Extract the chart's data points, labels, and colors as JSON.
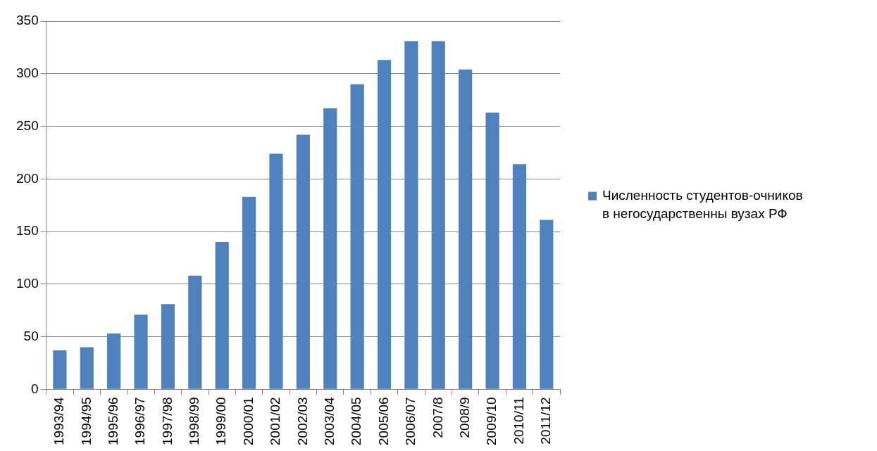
{
  "chart_data": {
    "type": "bar",
    "categories": [
      "1993/94",
      "1994/95",
      "1995/96",
      "1996/97",
      "1997/98",
      "1998/99",
      "1999/00",
      "2000/01",
      "2001/02",
      "2002/03",
      "2003/04",
      "2004/05",
      "2005/06",
      "2006/07",
      "2007/8",
      "2008/9",
      "2009/10",
      "2010/11",
      "2011/12"
    ],
    "series": [
      {
        "name": "Численность студентов-очников в негосударственны вузах РФ",
        "color": "#4f81bd",
        "values": [
          37,
          40,
          53,
          71,
          81,
          108,
          140,
          183,
          224,
          242,
          267,
          290,
          313,
          331,
          331,
          304,
          263,
          214,
          161
        ]
      }
    ],
    "ylim": [
      0,
      350
    ],
    "yticks": [
      0,
      50,
      100,
      150,
      200,
      250,
      300,
      350
    ],
    "grid": "y",
    "legend": "right"
  }
}
